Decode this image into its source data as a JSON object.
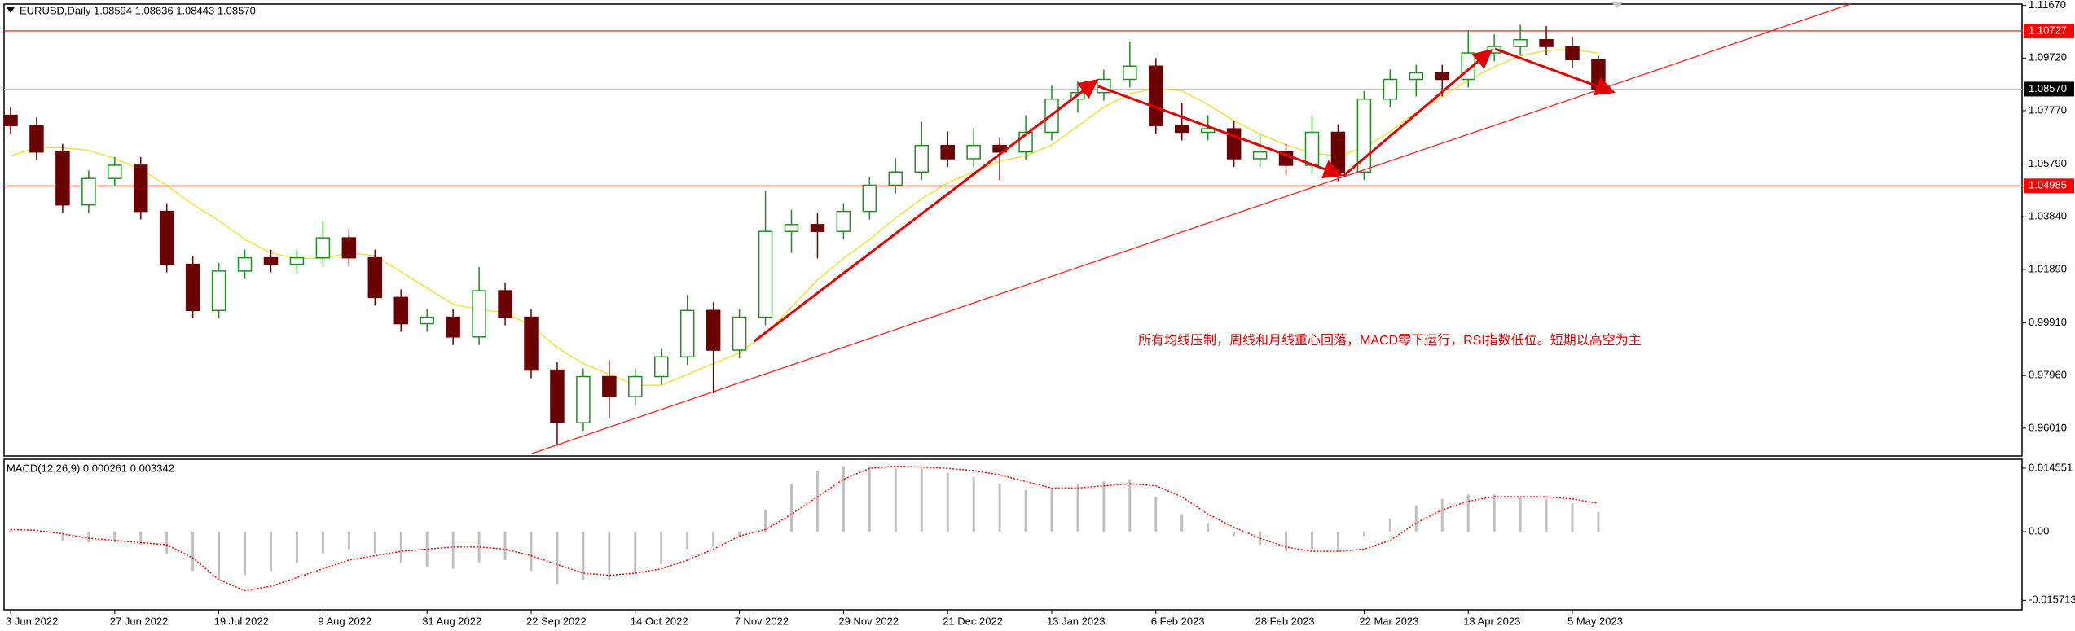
{
  "chart_data": [
    {
      "type": "candlestick",
      "title": "EURUSD,Daily  1.08594 1.08636 1.08443 1.08570",
      "annotation": "所有均线压制，周线和月线重心回落，MACD零下运行，RSI指数低位。短期以高空为主",
      "categories": [
        "3 Jun 2022",
        null,
        null,
        null,
        "27 Jun 2022",
        null,
        null,
        null,
        "19 Jul 2022",
        null,
        null,
        null,
        "9 Aug 2022",
        null,
        null,
        null,
        "31 Aug 2022",
        null,
        null,
        null,
        "22 Sep 2022",
        null,
        null,
        null,
        "14 Oct 2022",
        null,
        null,
        null,
        "7 Nov 2022",
        null,
        null,
        null,
        "29 Nov 2022",
        null,
        null,
        null,
        "21 Dec 2022",
        null,
        null,
        null,
        "13 Jan 2023",
        null,
        null,
        null,
        "6 Feb 2023",
        null,
        null,
        null,
        "28 Feb 2023",
        null,
        null,
        null,
        "22 Mar 2023",
        null,
        null,
        null,
        "13 Apr 2023",
        null,
        null,
        null,
        "5 May 2023",
        null
      ],
      "open": [
        1.076,
        1.0722,
        1.0624,
        1.0428,
        1.0526,
        1.0575,
        1.0404,
        1.0208,
        1.0037,
        1.0183,
        1.0232,
        1.0208,
        1.0232,
        1.0306,
        1.0232,
        1.0085,
        0.9988,
        1.0012,
        0.9939,
        1.011,
        1.0012,
        0.9816,
        0.9621,
        0.9792,
        0.9718,
        0.9792,
        0.9865,
        1.0037,
        0.989,
        1.0012,
        1.033,
        1.0355,
        1.033,
        1.0404,
        1.0501,
        1.055,
        1.0648,
        1.0599,
        1.0648,
        1.0624,
        1.0697,
        1.082,
        1.0844,
        1.0893,
        1.0942,
        1.0722,
        1.0697,
        1.071,
        1.0599,
        1.0624,
        1.0575,
        1.0697,
        1.055,
        1.082,
        1.0893,
        1.0917,
        1.0893,
        1.0991,
        1.1015,
        1.104,
        1.1015,
        1.0966
      ],
      "high": [
        1.079,
        1.0752,
        1.0654,
        1.0556,
        1.0605,
        1.0605,
        1.0434,
        1.0238,
        1.0213,
        1.0262,
        1.0262,
        1.0262,
        1.0368,
        1.0336,
        1.0262,
        1.0115,
        1.0042,
        1.0042,
        1.0198,
        1.014,
        1.0042,
        0.9846,
        0.9822,
        0.9852,
        0.9822,
        0.9895,
        1.0095,
        1.0067,
        1.0042,
        1.048,
        1.041,
        1.04,
        1.0434,
        1.0531,
        1.06,
        1.0736,
        1.07,
        1.0713,
        1.0678,
        1.076,
        1.087,
        1.0887,
        1.0929,
        1.1033,
        1.0972,
        1.0805,
        1.076,
        1.074,
        1.069,
        1.0654,
        1.076,
        1.0727,
        1.085,
        1.093,
        1.0947,
        1.0947,
        1.1075,
        1.106,
        1.1095,
        1.109,
        1.105,
        1.098
      ],
      "low": [
        1.0692,
        1.0594,
        1.0398,
        1.0398,
        1.0496,
        1.0374,
        1.0178,
        1.0007,
        1.0007,
        1.0153,
        1.0178,
        1.0178,
        1.0202,
        1.0202,
        1.0055,
        0.9958,
        0.9958,
        0.9909,
        0.9909,
        0.9982,
        0.9786,
        0.9536,
        0.9591,
        0.9636,
        0.9688,
        0.9762,
        0.9835,
        0.973,
        0.986,
        0.9982,
        1.025,
        1.023,
        1.03,
        1.0374,
        1.0471,
        1.052,
        1.0569,
        1.0569,
        1.052,
        1.0594,
        1.0667,
        1.077,
        1.0814,
        1.0863,
        1.0692,
        1.0667,
        1.0667,
        1.0569,
        1.0569,
        1.054,
        1.0545,
        1.0516,
        1.052,
        1.079,
        1.083,
        1.083,
        1.0863,
        1.096,
        1.0985,
        1.0985,
        1.0936,
        1.0844
      ],
      "close": [
        1.0722,
        1.0624,
        1.0428,
        1.0526,
        1.0575,
        1.0404,
        1.0208,
        1.0037,
        1.0183,
        1.0232,
        1.0208,
        1.0232,
        1.0306,
        1.0232,
        1.0085,
        0.9988,
        1.0012,
        0.9939,
        1.011,
        1.0012,
        0.9816,
        0.9621,
        0.9792,
        0.9718,
        0.9792,
        0.9865,
        1.0037,
        0.989,
        1.0012,
        1.033,
        1.0355,
        1.033,
        1.0404,
        1.0501,
        1.055,
        1.0648,
        1.0599,
        1.0648,
        1.0624,
        1.0697,
        1.082,
        1.0844,
        1.0893,
        1.0942,
        1.0722,
        1.0697,
        1.071,
        1.0599,
        1.0624,
        1.0575,
        1.0697,
        1.055,
        1.082,
        1.0893,
        1.0917,
        1.0893,
        1.0991,
        1.1015,
        1.104,
        1.1015,
        1.0966,
        1.0857
      ],
      "up_color": "#1f8f1f",
      "down_color": "#6b0000",
      "ma": {
        "color": "#f0e040",
        "values": [
          1.061,
          1.064,
          1.064,
          1.063,
          1.06,
          1.056,
          1.05,
          1.043,
          1.037,
          1.03,
          1.025,
          1.023,
          1.023,
          1.025,
          1.024,
          1.018,
          1.012,
          1.006,
          1.004,
          1.003,
          0.998,
          0.99,
          0.984,
          0.98,
          0.976,
          0.976,
          0.98,
          0.984,
          0.988,
          0.995,
          1.005,
          1.015,
          1.023,
          1.03,
          1.038,
          1.045,
          1.051,
          1.055,
          1.059,
          1.061,
          1.065,
          1.072,
          1.079,
          1.084,
          1.086,
          1.085,
          1.08,
          1.074,
          1.069,
          1.065,
          1.062,
          1.061,
          1.064,
          1.07,
          1.077,
          1.083,
          1.089,
          1.094,
          1.098,
          1.1,
          1.1005,
          1.099
        ]
      },
      "levels": [
        {
          "value": 1.10727,
          "label": "1.10727",
          "color": "#ff0000",
          "box_color": "#ff0000"
        },
        {
          "value": 1.0857,
          "label": "1.08570",
          "color": "#c0c0c0",
          "box_color": "#000000"
        },
        {
          "value": 1.04985,
          "label": "1.04985",
          "color": "#ff0000",
          "box_color": "#ff0000"
        }
      ],
      "ylim": [
        0.9498,
        1.1172
      ],
      "yticks": [
        {
          "value": 1.1167,
          "label": "1.11670"
        },
        {
          "value": 1.0972,
          "label": "1.09720"
        },
        {
          "value": 1.0777,
          "label": "1.07770"
        },
        {
          "value": 1.0579,
          "label": "1.05790"
        },
        {
          "value": 1.0384,
          "label": "1.03840"
        },
        {
          "value": 1.0189,
          "label": "1.01890"
        },
        {
          "value": 0.9991,
          "label": "0.99910"
        },
        {
          "value": 0.9796,
          "label": "0.97960"
        },
        {
          "value": 0.9601,
          "label": "0.96010"
        }
      ],
      "grid": false
    },
    {
      "type": "macd",
      "title": "MACD(12,26,9) 0.000261 0.003342",
      "series": [
        {
          "color": "#c0c0c0",
          "values": [
            0.0005,
            -0.0003,
            -0.002,
            -0.0025,
            -0.0025,
            -0.003,
            -0.005,
            -0.009,
            -0.011,
            -0.01,
            -0.009,
            -0.007,
            -0.005,
            -0.004,
            -0.005,
            -0.007,
            -0.008,
            -0.0085,
            -0.007,
            -0.0065,
            -0.009,
            -0.012,
            -0.011,
            -0.011,
            -0.0095,
            -0.0075,
            -0.004,
            -0.0035,
            -0.001,
            0.005,
            0.011,
            0.014,
            0.015,
            0.015,
            0.0145,
            0.0145,
            0.0135,
            0.0125,
            0.011,
            0.0095,
            0.01,
            0.011,
            0.0115,
            0.012,
            0.008,
            0.004,
            0.002,
            -0.001,
            -0.003,
            -0.0045,
            -0.004,
            -0.0045,
            -0.001,
            0.003,
            0.006,
            0.0075,
            0.0085,
            0.0085,
            0.008,
            0.0075,
            0.0065,
            0.0045
          ]
        },
        {
          "color": "#ff0000",
          "values": [
            0.0005,
            0.0003,
            -0.0005,
            -0.0015,
            -0.002,
            -0.0025,
            -0.003,
            -0.006,
            -0.011,
            -0.0135,
            -0.0125,
            -0.0105,
            -0.0085,
            -0.0065,
            -0.0055,
            -0.0045,
            -0.004,
            -0.0035,
            -0.0035,
            -0.004,
            -0.0055,
            -0.0075,
            -0.0095,
            -0.01,
            -0.0095,
            -0.0085,
            -0.0065,
            -0.004,
            -0.001,
            0.0005,
            0.004,
            0.008,
            0.012,
            0.0145,
            0.015,
            0.0148,
            0.0145,
            0.014,
            0.013,
            0.0115,
            0.01,
            0.01,
            0.0105,
            0.011,
            0.0105,
            0.008,
            0.004,
            0.001,
            -0.0015,
            -0.0035,
            -0.0045,
            -0.0045,
            -0.004,
            -0.002,
            0.002,
            0.005,
            0.007,
            0.008,
            0.008,
            0.008,
            0.0075,
            0.0065
          ]
        }
      ],
      "ylim": [
        -0.0179,
        0.0166
      ],
      "yticks": [
        0.014551,
        {
          "value": 0,
          "label": "0.00"
        },
        -0.015713
      ]
    }
  ]
}
